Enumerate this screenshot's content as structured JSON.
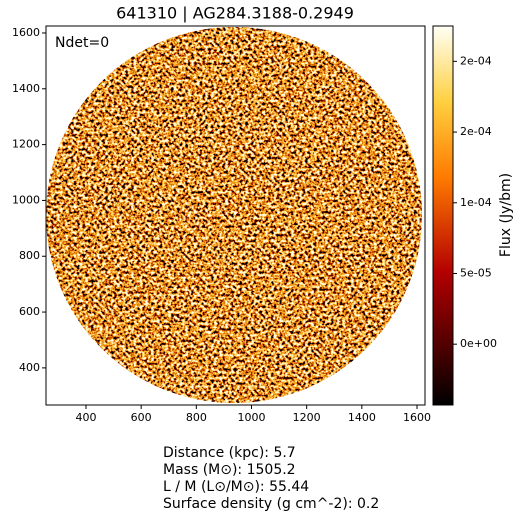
{
  "chart_data": {
    "type": "image",
    "title": "641310 | AG284.3188-0.2949",
    "annotation": "Ndet=0",
    "xlim": [
      255,
      1629
    ],
    "ylim": [
      267,
      1625
    ],
    "xticks": [
      400,
      600,
      800,
      1000,
      1200,
      1400,
      1600
    ],
    "yticks": [
      400,
      600,
      800,
      1000,
      1200,
      1400,
      1600
    ],
    "colorbar": {
      "label": "Flux (Jy/bm)",
      "clim": [
        -4.3e-05,
        0.000225
      ],
      "ticks": [
        {
          "value": 0,
          "label": "0e+00"
        },
        {
          "value": 5e-05,
          "label": "5e-05"
        },
        {
          "value": 0.0001,
          "label": "1e-04"
        },
        {
          "value": 0.00015,
          "label": "2e-04"
        },
        {
          "value": 0.0002,
          "label": "2e-04"
        }
      ]
    }
  },
  "footer": [
    "Distance (kpc): 5.7",
    "Mass (M⊙): 1505.2",
    "L / M (L⊙/M⊙): 55.44",
    "Surface density (g cm^-2): 0.2"
  ]
}
